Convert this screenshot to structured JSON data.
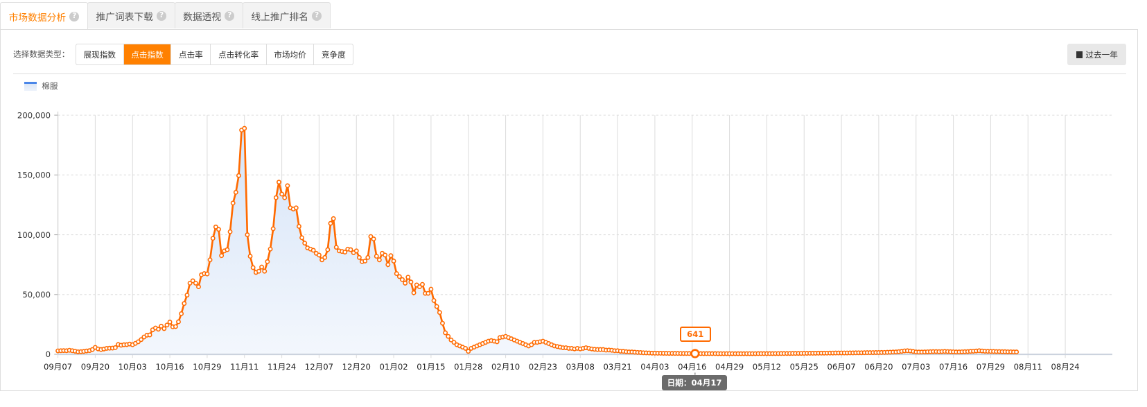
{
  "tabs": [
    {
      "label": "市场数据分析",
      "active": true
    },
    {
      "label": "推广词表下载"
    },
    {
      "label": "数据透视"
    },
    {
      "label": "线上推广排名"
    }
  ],
  "help_icon": "?",
  "toolbar": {
    "type_label": "选择数据类型：",
    "types": [
      {
        "label": "展现指数"
      },
      {
        "label": "点击指数",
        "active": true
      },
      {
        "label": "点击率"
      },
      {
        "label": "点击转化率"
      },
      {
        "label": "市场均价"
      },
      {
        "label": "竞争度"
      }
    ],
    "range_label": "过去一年",
    "range_icon": "calendar-icon"
  },
  "tooltip": {
    "value": "641",
    "date": "日期：04月17"
  },
  "chart_data": {
    "type": "area",
    "colors": {
      "line": "#ff6a00",
      "fill": "#dce8f8",
      "active_tab": "#ff8000"
    },
    "legend": [
      "棉服"
    ],
    "legend_position": "top-left",
    "grid": true,
    "ylim": [
      0,
      200000
    ],
    "yticks": [
      "0",
      "50,000",
      "100,000",
      "150,000",
      "200,000"
    ],
    "ytick_values": [
      0,
      50000,
      100000,
      150000,
      200000
    ],
    "xticks": [
      "09月07",
      "09月20",
      "10月03",
      "10月16",
      "10月29",
      "11月11",
      "11月24",
      "12月07",
      "12月20",
      "01月02",
      "01月15",
      "01月28",
      "02月10",
      "02月23",
      "03月08",
      "03月21",
      "04月03",
      "04月16",
      "04月29",
      "05月12",
      "05月25",
      "06月07",
      "06月20",
      "07月03",
      "07月16",
      "07月29",
      "08月11",
      "08月24"
    ],
    "xtick_interval_days": 13,
    "series": [
      {
        "name": "棉服",
        "values": [
          2900,
          3000,
          3100,
          3000,
          3400,
          3000,
          2600,
          2100,
          2200,
          2400,
          2800,
          3100,
          4000,
          5800,
          4500,
          4000,
          4400,
          5000,
          5100,
          5200,
          5600,
          8200,
          7600,
          8000,
          8100,
          8600,
          8000,
          9200,
          10500,
          12300,
          14500,
          16000,
          16200,
          20500,
          22000,
          21000,
          23500,
          21500,
          24500,
          27000,
          23000,
          23200,
          27200,
          34000,
          42500,
          49500,
          59500,
          61500,
          59500,
          56500,
          66500,
          67500,
          67200,
          79000,
          97000,
          106500,
          104500,
          82500,
          86500,
          87500,
          102500,
          126500,
          135500,
          149500,
          187500,
          189000,
          100000,
          82000,
          72500,
          68500,
          69500,
          73000,
          69500,
          77500,
          88000,
          105000,
          131000,
          144000,
          134000,
          131000,
          141000,
          122500,
          121500,
          122500,
          107000,
          97500,
          93000,
          89000,
          88000,
          87000,
          84500,
          83000,
          79000,
          81000,
          87500,
          109500,
          113500,
          89500,
          86500,
          86000,
          85500,
          88000,
          87500,
          85000,
          86500,
          81000,
          77500,
          78000,
          81000,
          98500,
          96500,
          82000,
          79000,
          84500,
          83000,
          75000,
          82500,
          78000,
          67500,
          65000,
          62500,
          59500,
          64500,
          60500,
          51500,
          58000,
          56500,
          58500,
          51000,
          51000,
          54500,
          45000,
          40000,
          35000,
          26000,
          18000,
          15000,
          12000,
          10000,
          8000,
          7000,
          6000,
          5000,
          2500,
          5000,
          6000,
          7000,
          8000,
          9000,
          10000,
          11000,
          11500,
          11000,
          10500,
          14000,
          14500,
          15000,
          14000,
          13000,
          12000,
          11000,
          10000,
          9000,
          8000,
          7000,
          8000,
          10000,
          10000,
          10500,
          11000,
          10000,
          9000,
          8000,
          7000,
          6500,
          6000,
          5500,
          5500,
          5000,
          5000,
          4500,
          5000,
          4500,
          5000,
          5500,
          5000,
          4500,
          4200,
          4000,
          4000,
          4000,
          3500,
          3600,
          3400,
          3000,
          3000,
          2600,
          2500,
          2200,
          2000,
          2000,
          1800,
          1600,
          1500,
          1300,
          1200,
          1100,
          1000,
          950,
          900,
          880,
          850,
          820,
          800,
          780,
          760,
          740,
          720,
          700,
          690,
          670,
          650,
          641,
          630,
          620,
          610,
          600,
          600,
          590,
          590,
          580,
          580,
          580,
          570,
          570,
          570,
          560,
          560,
          560,
          560,
          570,
          570,
          580,
          580,
          590,
          600,
          600,
          610,
          620,
          630,
          640,
          650,
          660,
          680,
          700,
          720,
          740,
          760,
          780,
          800,
          820,
          850,
          880,
          900,
          920,
          950,
          980,
          1000,
          1020,
          1050,
          1080,
          1100,
          1120,
          1150,
          1150,
          1150,
          1200,
          1200,
          1250,
          1300,
          1300,
          1350,
          1400,
          1400,
          1450,
          1500,
          1500,
          1550,
          1600,
          1700,
          1800,
          1900,
          2000,
          2200,
          2500,
          2900,
          3000,
          2800,
          2400,
          2000,
          1900,
          1900,
          2000,
          2100,
          2200,
          2300,
          2300,
          2200,
          2300,
          2400,
          2300,
          2200,
          2100,
          2000,
          2000,
          2100,
          2200,
          2300,
          2500,
          2600,
          2800,
          3000,
          2800,
          2600,
          2500,
          2400,
          2400,
          2300,
          2300,
          2200,
          2200,
          2100,
          2100,
          2000,
          2000
        ]
      }
    ],
    "highlight": {
      "date": "04月17",
      "value": 641
    }
  }
}
